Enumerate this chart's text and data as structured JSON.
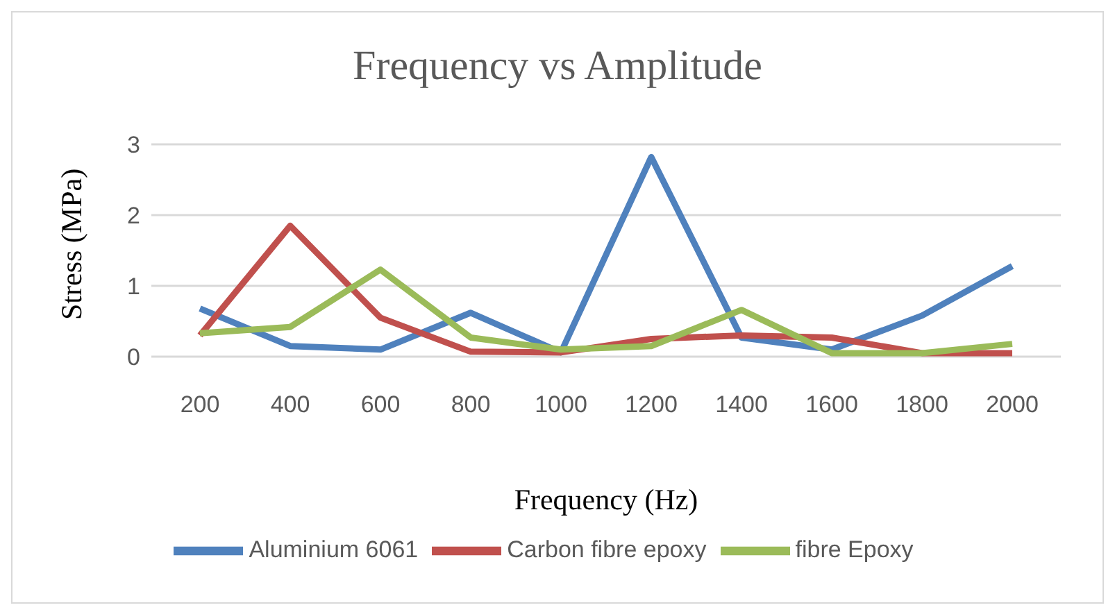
{
  "chart_data": {
    "type": "line",
    "title": "Frequency vs Amplitude",
    "xlabel": "Frequency (Hz)",
    "ylabel": "Stress (MPa)",
    "categories": [
      "200",
      "400",
      "600",
      "800",
      "1000",
      "1200",
      "1400",
      "1600",
      "1800",
      "2000"
    ],
    "series": [
      {
        "name": "Aluminium 6061",
        "color": "#4f81bd",
        "values": [
          0.68,
          0.15,
          0.1,
          0.62,
          0.06,
          2.82,
          0.27,
          0.1,
          0.58,
          1.28
        ]
      },
      {
        "name": "Carbon fibre epoxy",
        "color": "#c0504d",
        "values": [
          0.3,
          1.85,
          0.55,
          0.07,
          0.06,
          0.25,
          0.3,
          0.27,
          0.05,
          0.05
        ]
      },
      {
        "name": "fibre Epoxy",
        "color": "#9bbb59",
        "values": [
          0.33,
          0.42,
          1.23,
          0.27,
          0.1,
          0.15,
          0.66,
          0.05,
          0.05,
          0.18
        ]
      }
    ],
    "ylim": [
      0,
      3
    ],
    "yticks": [
      0,
      1,
      2,
      3
    ],
    "grid": "y",
    "legend": "bottom",
    "marker": "none",
    "line_style": "solid"
  }
}
